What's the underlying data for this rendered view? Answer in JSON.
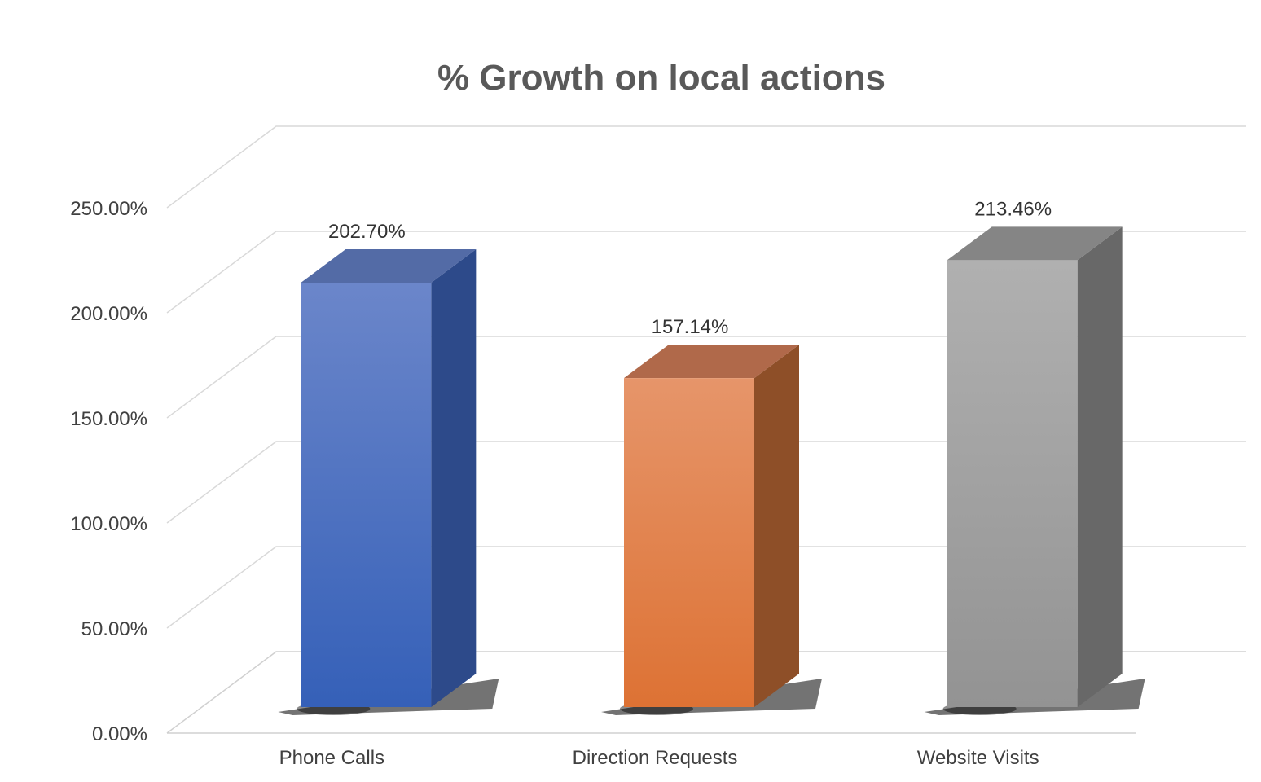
{
  "chart_data": {
    "type": "bar",
    "title": "% Growth on local actions",
    "categories": [
      "Phone Calls",
      "Direction Requests",
      "Website Visits"
    ],
    "values": [
      202.7,
      157.14,
      213.46
    ],
    "value_labels": [
      "202.70%",
      "157.14%",
      "213.46%"
    ],
    "ylim": [
      0,
      250
    ],
    "yticks": [
      0,
      50,
      100,
      150,
      200,
      250
    ],
    "ytick_labels": [
      "0.00%",
      "50.00%",
      "100.00%",
      "150.00%",
      "200.00%",
      "250.00%"
    ],
    "xlabel": "",
    "ylabel": "",
    "grid": true,
    "legend": "none",
    "style": "3d-column",
    "colors": [
      {
        "front_top": "#6b86ca",
        "front_bottom": "#3560b8",
        "side": "#2d4a8a",
        "top": "#536ba6"
      },
      {
        "front_top": "#e6956a",
        "front_bottom": "#dd7234",
        "side": "#8e4f28",
        "top": "#b0694a"
      },
      {
        "front_top": "#b0b0b0",
        "front_bottom": "#939393",
        "side": "#686868",
        "top": "#858585"
      }
    ]
  }
}
